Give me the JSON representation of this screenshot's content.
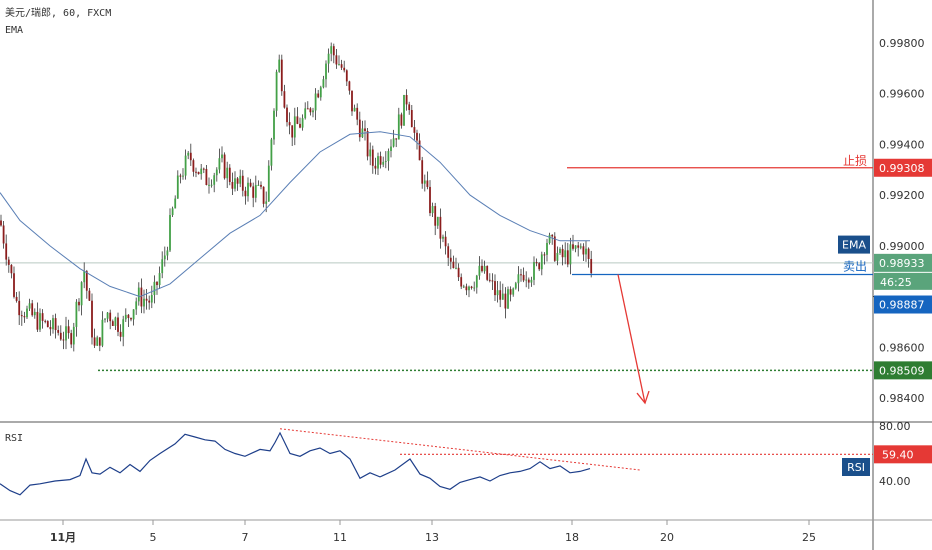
{
  "header": {
    "symbol_line": "美元/瑞郎, 60, FXCM",
    "indicator": "EMA"
  },
  "rsi": {
    "label": "RSI"
  },
  "colors": {
    "up": "#26a69a",
    "up_fill": "#43a047",
    "down": "#8b1d1d",
    "ema": "#5a7fb5",
    "stop": "#e53935",
    "sell": "#1565c0",
    "target": "#2e7d32",
    "rsi_line": "#1e3f8a",
    "trend": "#e53935"
  },
  "chart_data": [
    {
      "type": "candlestick",
      "title": "美元/瑞郎, 60, FXCM",
      "ylim": [
        0.9825,
        0.9992
      ],
      "y_ticks": [
        "0.99800",
        "0.99600",
        "0.99400",
        "0.99200",
        "0.99000",
        "0.98600",
        "0.98400"
      ],
      "x_ticks": [
        "11月",
        "5",
        "7",
        "11",
        "13",
        "18",
        "20",
        "25"
      ],
      "price_points": [
        [
          0,
          0.991
        ],
        [
          8,
          0.9895
        ],
        [
          16,
          0.9878
        ],
        [
          26,
          0.9874
        ],
        [
          40,
          0.987
        ],
        [
          55,
          0.9867
        ],
        [
          70,
          0.9863
        ],
        [
          84,
          0.9891
        ],
        [
          95,
          0.9858
        ],
        [
          107,
          0.9874
        ],
        [
          122,
          0.9868
        ],
        [
          138,
          0.988
        ],
        [
          152,
          0.9878
        ],
        [
          164,
          0.9895
        ],
        [
          172,
          0.9912
        ],
        [
          180,
          0.9928
        ],
        [
          190,
          0.9935
        ],
        [
          205,
          0.9926
        ],
        [
          222,
          0.9932
        ],
        [
          235,
          0.9924
        ],
        [
          255,
          0.9922
        ],
        [
          266,
          0.9918
        ],
        [
          272,
          0.9945
        ],
        [
          278,
          0.9975
        ],
        [
          290,
          0.9945
        ],
        [
          305,
          0.995
        ],
        [
          318,
          0.9962
        ],
        [
          330,
          0.9978
        ],
        [
          342,
          0.997
        ],
        [
          352,
          0.9955
        ],
        [
          362,
          0.9945
        ],
        [
          372,
          0.9932
        ],
        [
          386,
          0.9938
        ],
        [
          396,
          0.9945
        ],
        [
          408,
          0.996
        ],
        [
          418,
          0.9935
        ],
        [
          428,
          0.9918
        ],
        [
          440,
          0.9905
        ],
        [
          452,
          0.989
        ],
        [
          468,
          0.9885
        ],
        [
          482,
          0.989
        ],
        [
          498,
          0.988
        ],
        [
          512,
          0.9878
        ],
        [
          522,
          0.989
        ],
        [
          536,
          0.989
        ],
        [
          546,
          0.9903
        ],
        [
          560,
          0.9895
        ],
        [
          572,
          0.9897
        ],
        [
          584,
          0.99
        ],
        [
          592,
          0.9888
        ]
      ],
      "ema_points": [
        [
          0,
          0.9921
        ],
        [
          20,
          0.991
        ],
        [
          50,
          0.99
        ],
        [
          80,
          0.9891
        ],
        [
          110,
          0.9884
        ],
        [
          140,
          0.988
        ],
        [
          170,
          0.9885
        ],
        [
          200,
          0.9895
        ],
        [
          230,
          0.9905
        ],
        [
          260,
          0.9912
        ],
        [
          290,
          0.9925
        ],
        [
          320,
          0.9937
        ],
        [
          350,
          0.9944
        ],
        [
          380,
          0.9945
        ],
        [
          410,
          0.9943
        ],
        [
          440,
          0.9933
        ],
        [
          470,
          0.992
        ],
        [
          500,
          0.9912
        ],
        [
          530,
          0.9906
        ],
        [
          560,
          0.9902
        ],
        [
          590,
          0.9902
        ]
      ],
      "annotations": {
        "stop": {
          "label": "止损",
          "price": 0.99308,
          "text": "0.99308",
          "x_from": 567
        },
        "ema": {
          "label": "EMA",
          "price_box": 0.99005
        },
        "current": {
          "price": 0.98933,
          "text": "0.98933",
          "countdown": "46:25"
        },
        "sell": {
          "label": "卖出",
          "price": 0.98887,
          "text": "0.98887",
          "x_from": 572
        },
        "target": {
          "price": 0.98509,
          "text": "0.98509",
          "x_from": 98
        },
        "arrow": {
          "from": [
            618,
            0.98887
          ],
          "to": [
            645,
            0.9838
          ]
        }
      }
    },
    {
      "type": "line",
      "title": "RSI",
      "ylim": [
        20,
        85
      ],
      "y_ticks": [
        "80.00",
        "40.00"
      ],
      "rsi_points": [
        [
          0,
          38
        ],
        [
          10,
          33
        ],
        [
          20,
          30
        ],
        [
          30,
          37
        ],
        [
          40,
          38
        ],
        [
          55,
          40
        ],
        [
          70,
          41
        ],
        [
          80,
          44
        ],
        [
          86,
          56
        ],
        [
          92,
          46
        ],
        [
          100,
          45
        ],
        [
          110,
          50
        ],
        [
          120,
          46
        ],
        [
          130,
          52
        ],
        [
          140,
          47
        ],
        [
          150,
          55
        ],
        [
          160,
          60
        ],
        [
          175,
          67
        ],
        [
          185,
          74
        ],
        [
          195,
          72
        ],
        [
          205,
          70
        ],
        [
          215,
          69
        ],
        [
          225,
          63
        ],
        [
          235,
          60
        ],
        [
          245,
          58
        ],
        [
          260,
          63
        ],
        [
          270,
          62
        ],
        [
          275,
          68
        ],
        [
          280,
          75
        ],
        [
          290,
          60
        ],
        [
          300,
          58
        ],
        [
          310,
          62
        ],
        [
          320,
          64
        ],
        [
          330,
          60
        ],
        [
          340,
          62
        ],
        [
          350,
          56
        ],
        [
          360,
          42
        ],
        [
          370,
          46
        ],
        [
          380,
          43
        ],
        [
          395,
          48
        ],
        [
          410,
          56
        ],
        [
          420,
          45
        ],
        [
          430,
          42
        ],
        [
          440,
          36
        ],
        [
          450,
          34
        ],
        [
          460,
          39
        ],
        [
          470,
          41
        ],
        [
          480,
          43
        ],
        [
          490,
          40
        ],
        [
          500,
          44
        ],
        [
          510,
          46
        ],
        [
          520,
          47
        ],
        [
          530,
          49
        ],
        [
          540,
          54
        ],
        [
          550,
          49
        ],
        [
          560,
          51
        ],
        [
          570,
          46
        ],
        [
          580,
          47
        ],
        [
          590,
          49
        ]
      ],
      "level": {
        "value": 59.4,
        "text": "59.40"
      },
      "trend_line": [
        [
          280,
          78
        ],
        [
          640,
          48
        ]
      ]
    }
  ]
}
